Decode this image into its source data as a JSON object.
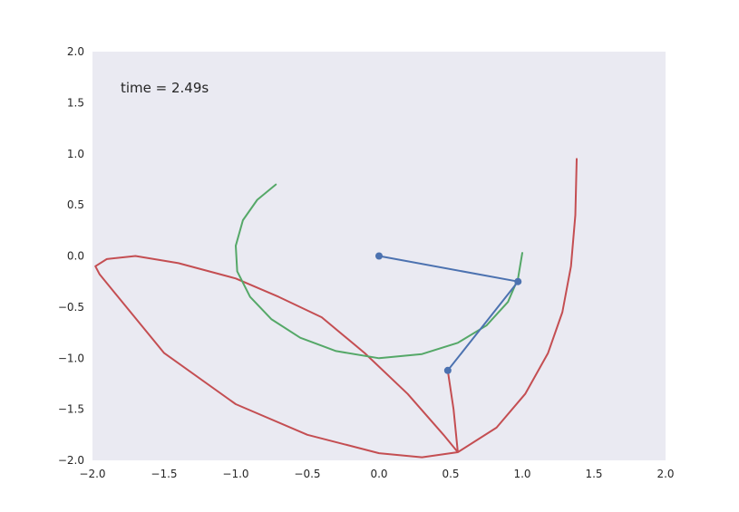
{
  "chart_data": {
    "type": "line",
    "title": "",
    "xlabel": "",
    "ylabel": "",
    "xlim": [
      -2.0,
      2.0
    ],
    "ylim": [
      -2.0,
      2.0
    ],
    "grid": false,
    "background": "#eaeaf2",
    "xticks": [
      "−2.0",
      "−1.5",
      "−1.0",
      "−0.5",
      "0.0",
      "0.5",
      "1.0",
      "1.5",
      "2.0"
    ],
    "yticks": [
      "2.0",
      "1.5",
      "1.0",
      "0.5",
      "0.0",
      "−0.5",
      "−1.0",
      "−1.5",
      "−2.0"
    ],
    "annotation": "time = 2.49s",
    "series": [
      {
        "color": "#4c72b0",
        "marker": "circle",
        "x": [
          0.0,
          0.97,
          0.48
        ],
        "y": [
          0.0,
          -0.25,
          -1.12
        ]
      },
      {
        "color": "#55a868",
        "x": [
          -0.72,
          -0.85,
          -0.95,
          -1.0,
          -0.99,
          -0.9,
          -0.75,
          -0.55,
          -0.3,
          0.0,
          0.3,
          0.55,
          0.75,
          0.9,
          0.97,
          1.0
        ],
        "y": [
          0.7,
          0.55,
          0.35,
          0.1,
          -0.15,
          -0.4,
          -0.62,
          -0.8,
          -0.93,
          -1.0,
          -0.96,
          -0.85,
          -0.68,
          -0.45,
          -0.22,
          0.03
        ]
      },
      {
        "color": "#c44e52",
        "x": [
          1.38,
          1.37,
          1.34,
          1.28,
          1.18,
          1.02,
          0.82,
          0.55,
          0.3,
          0.0,
          -0.5,
          -1.0,
          -1.5,
          -1.95,
          -1.98,
          -1.9,
          -1.7,
          -1.4,
          -1.0,
          -0.7,
          -0.4,
          -0.1,
          0.2,
          0.45,
          0.55,
          0.52,
          0.48
        ],
        "y": [
          0.95,
          0.4,
          -0.1,
          -0.55,
          -0.95,
          -1.35,
          -1.68,
          -1.92,
          -1.97,
          -1.93,
          -1.75,
          -1.45,
          -0.95,
          -0.18,
          -0.1,
          -0.03,
          0.0,
          -0.07,
          -0.22,
          -0.4,
          -0.6,
          -0.95,
          -1.35,
          -1.75,
          -1.92,
          -1.5,
          -1.12
        ]
      }
    ]
  }
}
